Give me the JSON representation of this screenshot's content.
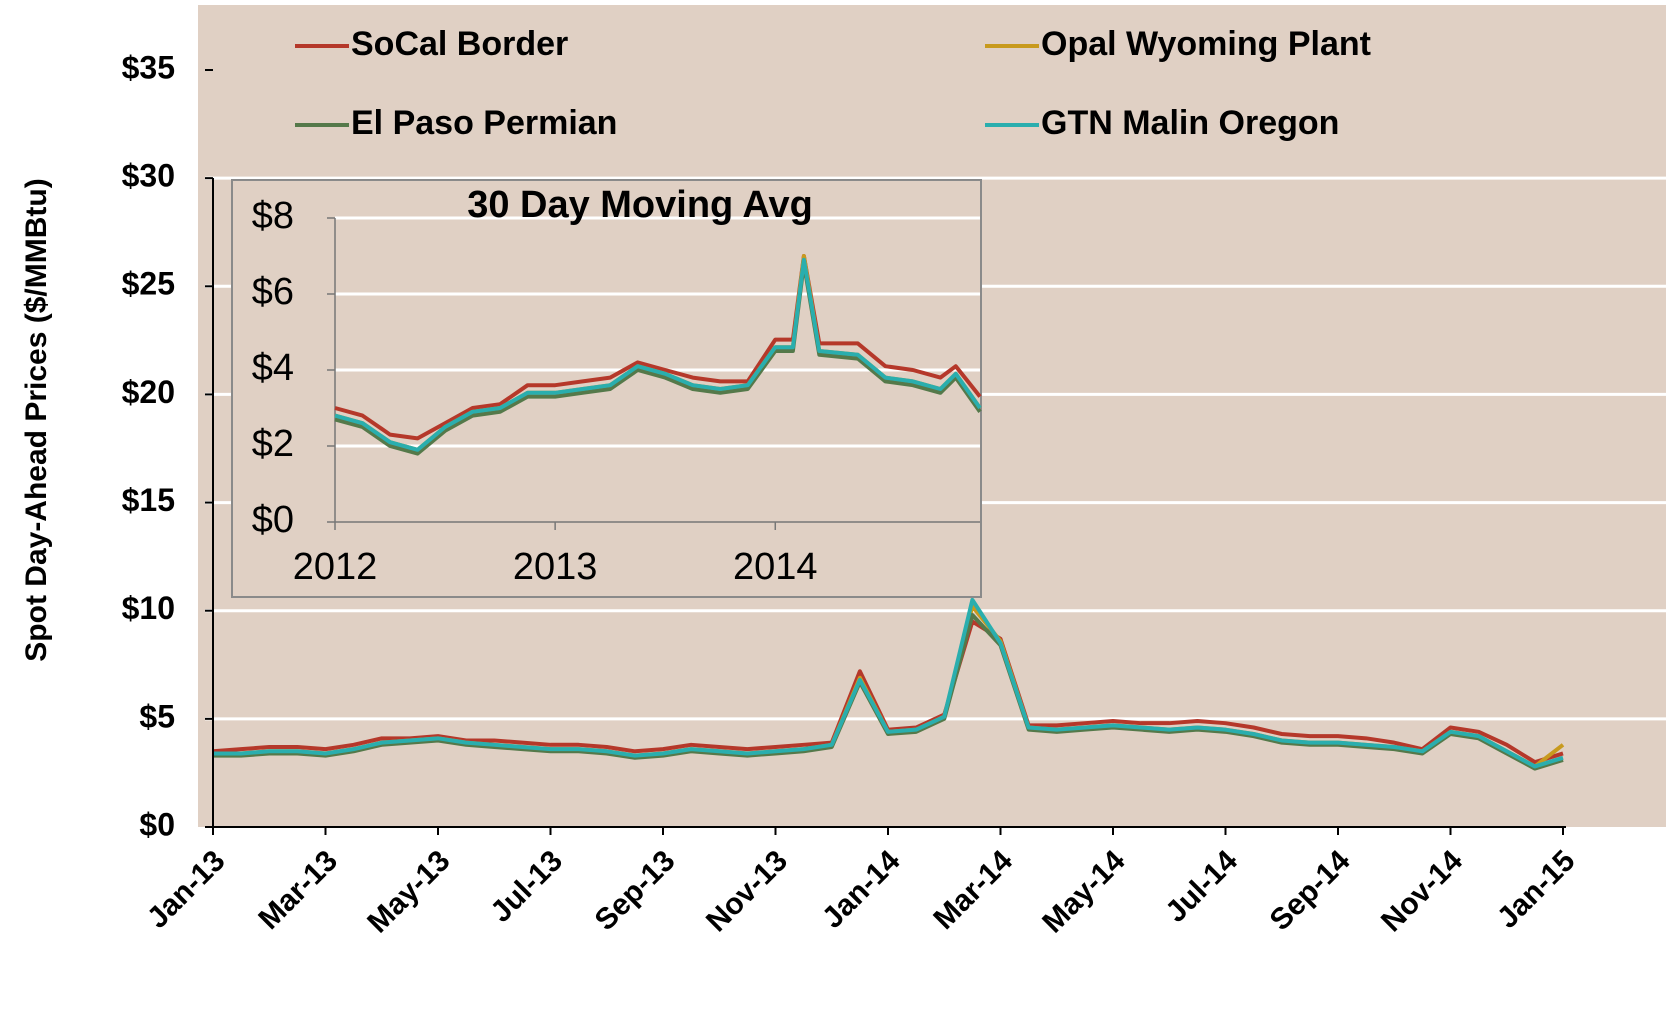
{
  "chart_data": [
    {
      "type": "line",
      "y_label": "Spot Day-Ahead Prices ($/MMBtu)",
      "categories": [
        "Jan-13",
        null,
        null,
        null,
        "Mar-13",
        null,
        null,
        null,
        "May-13",
        null,
        null,
        null,
        "Jul-13",
        null,
        null,
        null,
        "Sep-13",
        null,
        null,
        null,
        "Nov-13",
        null,
        null,
        null,
        "Jan-14",
        null,
        null,
        null,
        "Mar-14",
        null,
        null,
        null,
        "May-14",
        null,
        null,
        null,
        "Jul-14",
        null,
        null,
        null,
        "Sep-14",
        null,
        null,
        null,
        "Nov-14",
        null,
        null,
        null,
        "Jan-15"
      ],
      "ylim": [
        0,
        35
      ],
      "yticks": [
        {
          "value": 0,
          "label": "$0"
        },
        {
          "value": 5,
          "label": "$5"
        },
        {
          "value": 10,
          "label": "$10"
        },
        {
          "value": 15,
          "label": "$15"
        },
        {
          "value": 20,
          "label": "$20"
        },
        {
          "value": 25,
          "label": "$25"
        },
        {
          "value": 30,
          "label": "$30"
        },
        {
          "value": 35,
          "label": "$35"
        }
      ],
      "grid": true,
      "legend": "top",
      "series": [
        {
          "name": "SoCal Border",
          "color": "#b5382a",
          "values": [
            3.5,
            3.6,
            3.7,
            3.7,
            3.6,
            3.8,
            4.1,
            4.1,
            4.2,
            4.0,
            4.0,
            3.9,
            3.8,
            3.8,
            3.7,
            3.5,
            3.6,
            3.8,
            3.7,
            3.6,
            3.7,
            3.8,
            3.9,
            7.2,
            4.5,
            4.6,
            5.2,
            9.5,
            8.7,
            4.7,
            4.7,
            4.8,
            4.9,
            4.8,
            4.8,
            4.9,
            4.8,
            4.6,
            4.3,
            4.2,
            4.2,
            4.1,
            3.9,
            3.6,
            4.6,
            4.4,
            3.8,
            3.0,
            3.4
          ]
        },
        {
          "name": "Opal Wyoming Plant",
          "color": "#c89a1e",
          "values": [
            3.4,
            3.4,
            3.5,
            3.5,
            3.4,
            3.6,
            3.9,
            4.0,
            4.1,
            3.9,
            3.8,
            3.7,
            3.6,
            3.6,
            3.5,
            3.3,
            3.4,
            3.6,
            3.5,
            3.4,
            3.5,
            3.6,
            3.8,
            6.9,
            4.4,
            4.5,
            5.1,
            10.2,
            8.6,
            4.6,
            4.5,
            4.6,
            4.7,
            4.6,
            4.5,
            4.6,
            4.5,
            4.3,
            4.0,
            3.9,
            3.9,
            3.8,
            3.7,
            3.5,
            4.4,
            4.2,
            3.5,
            2.8,
            3.8
          ]
        },
        {
          "name": "El Paso Permian",
          "color": "#55794a",
          "values": [
            3.3,
            3.3,
            3.4,
            3.4,
            3.3,
            3.5,
            3.8,
            3.9,
            4.0,
            3.8,
            3.7,
            3.6,
            3.5,
            3.5,
            3.4,
            3.2,
            3.3,
            3.5,
            3.4,
            3.3,
            3.4,
            3.5,
            3.7,
            6.7,
            4.3,
            4.4,
            5.0,
            9.8,
            8.4,
            4.5,
            4.4,
            4.5,
            4.6,
            4.5,
            4.4,
            4.5,
            4.4,
            4.2,
            3.9,
            3.8,
            3.8,
            3.7,
            3.6,
            3.4,
            4.3,
            4.1,
            3.4,
            2.7,
            3.1
          ]
        },
        {
          "name": "GTN Malin Oregon",
          "color": "#2aaeae",
          "values": [
            3.4,
            3.4,
            3.5,
            3.5,
            3.4,
            3.6,
            3.9,
            4.0,
            4.1,
            3.9,
            3.8,
            3.7,
            3.6,
            3.6,
            3.5,
            3.3,
            3.4,
            3.6,
            3.5,
            3.4,
            3.5,
            3.6,
            3.8,
            6.8,
            4.4,
            4.5,
            5.1,
            10.5,
            8.5,
            4.6,
            4.5,
            4.6,
            4.7,
            4.6,
            4.5,
            4.6,
            4.5,
            4.3,
            4.0,
            3.9,
            3.9,
            3.8,
            3.7,
            3.5,
            4.4,
            4.2,
            3.5,
            2.8,
            3.2
          ]
        }
      ]
    },
    {
      "type": "line",
      "title": "30 Day Moving Avg",
      "x": [
        2012.0,
        2012.125,
        2012.25,
        2012.375,
        2012.5,
        2012.625,
        2012.75,
        2012.875,
        2013.0,
        2013.125,
        2013.25,
        2013.375,
        2013.5,
        2013.625,
        2013.75,
        2013.875,
        2014.0,
        2014.08,
        2014.13,
        2014.2,
        2014.375,
        2014.5,
        2014.625,
        2014.75,
        2014.82,
        2014.93
      ],
      "xlim": [
        2012,
        2014.93
      ],
      "xticks": [
        2012,
        2013,
        2014
      ],
      "ylim": [
        0,
        8
      ],
      "yticks": [
        {
          "value": 0,
          "label": "$0"
        },
        {
          "value": 2,
          "label": "$2"
        },
        {
          "value": 4,
          "label": "$4"
        },
        {
          "value": 6,
          "label": "$6"
        },
        {
          "value": 8,
          "label": "$8"
        }
      ],
      "grid": true,
      "series": [
        {
          "name": "SoCal Border",
          "color": "#b5382a",
          "values": [
            3.0,
            2.8,
            2.3,
            2.2,
            2.6,
            3.0,
            3.1,
            3.6,
            3.6,
            3.7,
            3.8,
            4.2,
            4.0,
            3.8,
            3.7,
            3.7,
            4.8,
            4.8,
            7.0,
            4.7,
            4.7,
            4.1,
            4.0,
            3.8,
            4.1,
            3.3
          ]
        },
        {
          "name": "Opal Wyoming Plant",
          "color": "#c89a1e",
          "values": [
            2.8,
            2.6,
            2.1,
            1.9,
            2.5,
            2.9,
            3.0,
            3.4,
            3.4,
            3.5,
            3.6,
            4.1,
            3.9,
            3.6,
            3.5,
            3.6,
            4.6,
            4.6,
            7.0,
            4.5,
            4.4,
            3.8,
            3.7,
            3.5,
            3.9,
            3.0
          ]
        },
        {
          "name": "El Paso Permian",
          "color": "#55794a",
          "values": [
            2.7,
            2.5,
            2.0,
            1.8,
            2.4,
            2.8,
            2.9,
            3.3,
            3.3,
            3.4,
            3.5,
            4.0,
            3.8,
            3.5,
            3.4,
            3.5,
            4.5,
            4.5,
            6.8,
            4.4,
            4.3,
            3.7,
            3.6,
            3.4,
            3.8,
            2.9
          ]
        },
        {
          "name": "GTN Malin Oregon",
          "color": "#2aaeae",
          "values": [
            2.8,
            2.6,
            2.1,
            1.9,
            2.5,
            2.9,
            3.0,
            3.4,
            3.4,
            3.5,
            3.6,
            4.1,
            3.9,
            3.6,
            3.5,
            3.6,
            4.6,
            4.6,
            6.9,
            4.5,
            4.4,
            3.8,
            3.7,
            3.5,
            3.9,
            3.0
          ]
        }
      ]
    }
  ]
}
